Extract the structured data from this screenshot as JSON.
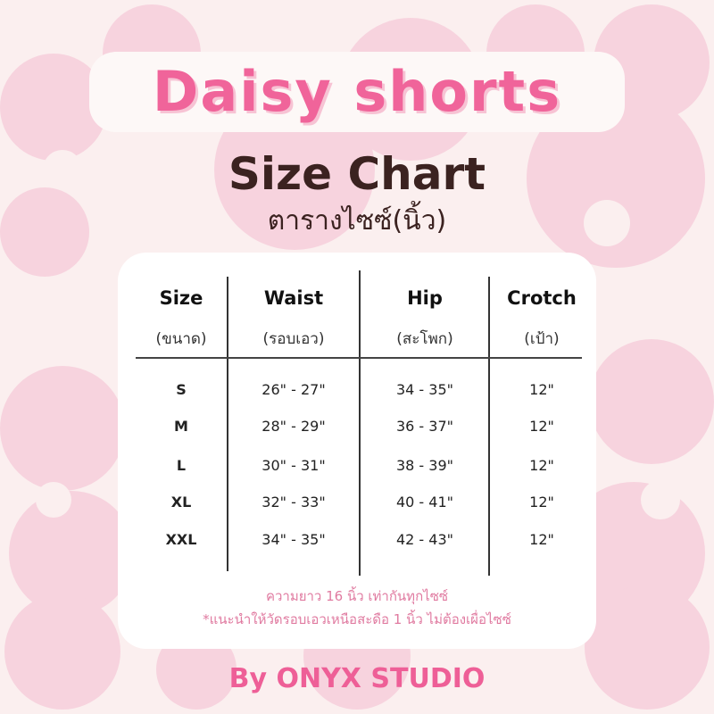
{
  "title": "Daisy shorts",
  "subtitle": "Size Chart",
  "subtitle_thai": "ตารางไซซ์(นิ้ว)",
  "colors": {
    "accent": "#f0649a",
    "background": "#fbefef",
    "flower": "#f7d3de",
    "heading": "#3b2220"
  },
  "table": {
    "headers": [
      {
        "label": "Size",
        "thai": "(ขนาด)"
      },
      {
        "label": "Waist",
        "thai": "(รอบเอว)"
      },
      {
        "label": "Hip",
        "thai": "(สะโพก)"
      },
      {
        "label": "Crotch",
        "thai": "(เป้า)"
      }
    ],
    "rows": [
      [
        "S",
        "26\" - 27\"",
        "34 - 35\"",
        "12\""
      ],
      [
        "M",
        "28\" - 29\"",
        "36 - 37\"",
        "12\""
      ],
      [
        "L",
        "30\" - 31\"",
        "38 - 39\"",
        "12\""
      ],
      [
        "XL",
        "32\" - 33\"",
        "40 - 41\"",
        "12\""
      ],
      [
        "XXL",
        "34\" - 35\"",
        "42 - 43\"",
        "12\""
      ]
    ]
  },
  "notes": [
    "ความยาว 16 นิ้ว เท่ากันทุกไซซ์",
    "*แนะนำให้วัดรอบเอวเหนือสะดือ 1 นิ้ว ไม่ต้องเผื่อไซซ์"
  ],
  "footer": "By ONYX STUDIO"
}
